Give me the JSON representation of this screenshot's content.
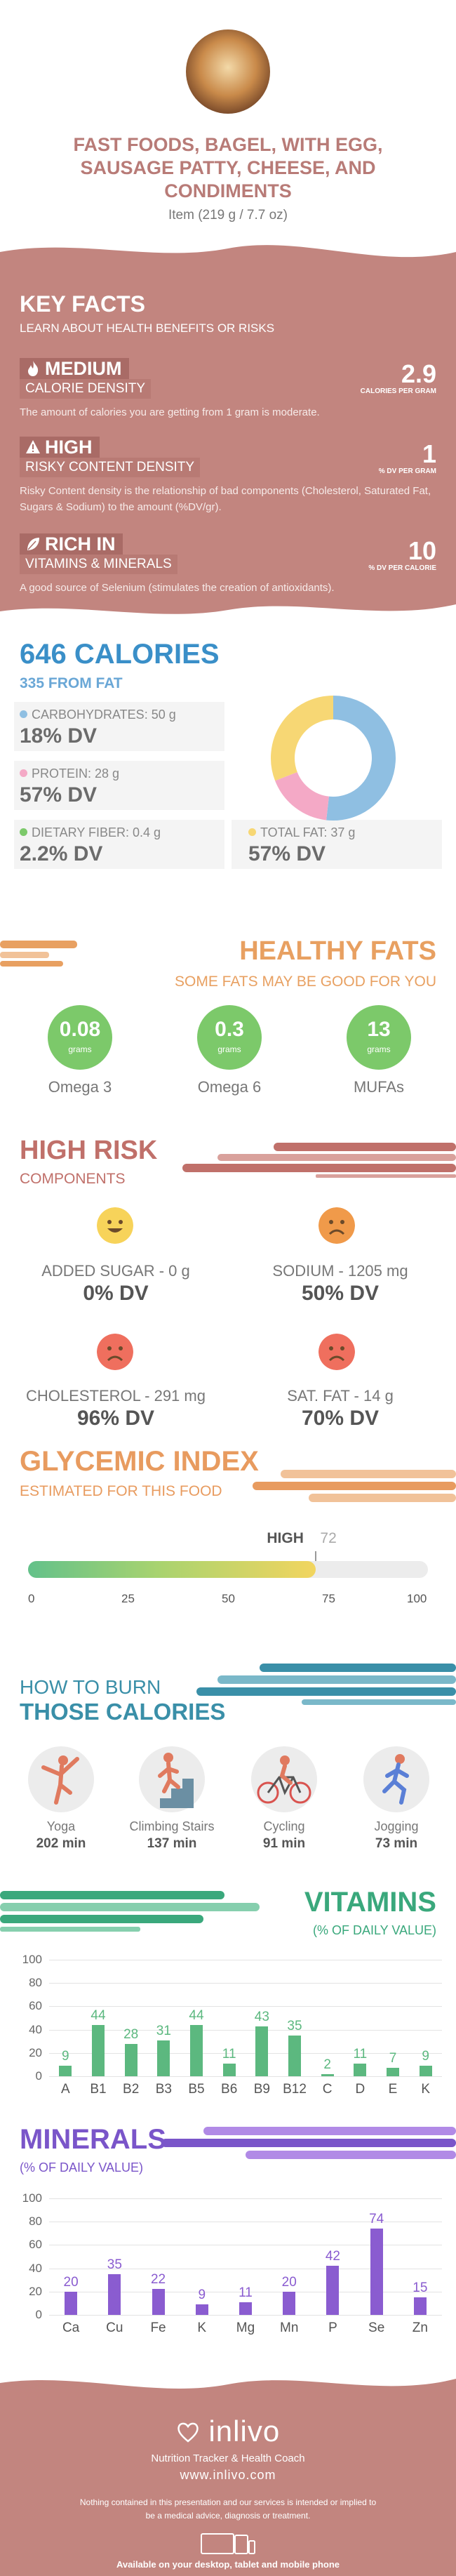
{
  "header": {
    "title": "FAST FOODS, BAGEL, WITH EGG, SAUSAGE PATTY, CHEESE, AND CONDIMENTS",
    "subtitle": "Item (219 g / 7.7 oz)"
  },
  "key_facts": {
    "title": "KEY FACTS",
    "subtitle": "LEARN ABOUT HEALTH BENEFITS OR RISKS",
    "items": [
      {
        "level": "MEDIUM",
        "label": "CALORIE DENSITY",
        "value": "2.9",
        "unit": "CALORIES PER GRAM",
        "description": "The amount of calories you are getting from 1 gram is moderate.",
        "icon": "flame-icon"
      },
      {
        "level": "HIGH",
        "label": "RISKY CONTENT DENSITY",
        "value": "1",
        "unit": "% DV PER GRAM",
        "description": "Risky Content density is the relationship of bad components (Cholesterol, Saturated Fat, Sugars & Sodium) to the amount (%DV/gr).",
        "icon": "warning-icon"
      },
      {
        "level": "RICH IN",
        "label": "VITAMINS & MINERALS",
        "value": "10",
        "unit": "% DV PER CALORIE",
        "description": "A good source of Selenium (stimulates the creation of antioxidants).",
        "icon": "leaf-icon"
      }
    ]
  },
  "calories": {
    "title": "646 CALORIES",
    "subtitle": "335 FROM FAT",
    "carbs": {
      "label": "CARBOHYDRATES: 50 g",
      "dv": "18% DV",
      "color": "#f7d774"
    },
    "protein": {
      "label": "PROTEIN: 28 g",
      "dv": "57% DV",
      "color": "#f4a9c6"
    },
    "fiber": {
      "label": "DIETARY FIBER: 0.4 g",
      "dv": "2.2% DV",
      "color": "#7cc96a"
    },
    "fat": {
      "label": "TOTAL FAT: 37 g",
      "dv": "57% DV",
      "color": "#f7d774"
    },
    "donut": [
      {
        "name": "fat",
        "value": 335,
        "color": "#8fbfe2"
      },
      {
        "name": "protein",
        "value": 112,
        "color": "#f4a9c6"
      },
      {
        "name": "carbs",
        "value": 200,
        "color": "#f7d774"
      }
    ]
  },
  "healthy_fats": {
    "title": "HEALTHY FATS",
    "subtitle": "SOME FATS MAY BE GOOD FOR YOU",
    "items": [
      {
        "value": "0.08",
        "unit": "grams",
        "label": "Omega 3"
      },
      {
        "value": "0.3",
        "unit": "grams",
        "label": "Omega 6"
      },
      {
        "value": "13",
        "unit": "grams",
        "label": "MUFAs"
      }
    ]
  },
  "high_risk": {
    "title": "HIGH RISK",
    "subtitle": "COMPONENTS",
    "items": [
      {
        "label": "ADDED SUGAR - 0 g",
        "dv": "0% DV",
        "mood": "happy",
        "color": "#f7d35a"
      },
      {
        "label": "SODIUM - 1205 mg",
        "dv": "50% DV",
        "mood": "sad",
        "color": "#f09a4a"
      },
      {
        "label": "CHOLESTEROL - 291 mg",
        "dv": "96% DV",
        "mood": "sad",
        "color": "#ef6f5e"
      },
      {
        "label": "SAT. FAT - 14 g",
        "dv": "70% DV",
        "mood": "sad",
        "color": "#ef6f5e"
      }
    ]
  },
  "glycemic": {
    "title": "GLYCEMIC INDEX",
    "subtitle": "ESTIMATED FOR THIS FOOD",
    "level": "HIGH",
    "value": 72,
    "ticks": [
      "0",
      "25",
      "50",
      "75",
      "100"
    ]
  },
  "burn": {
    "title_line1": "HOW TO BURN",
    "title_line2": "THOSE CALORIES",
    "activities": [
      {
        "label": "Yoga",
        "minutes": "202 min",
        "icon": "yoga-icon"
      },
      {
        "label": "Climbing Stairs",
        "minutes": "137 min",
        "icon": "stairs-icon"
      },
      {
        "label": "Cycling",
        "minutes": "91 min",
        "icon": "cycling-icon"
      },
      {
        "label": "Jogging",
        "minutes": "73 min",
        "icon": "jogging-icon"
      }
    ]
  },
  "vitamins": {
    "title": "VITAMINS",
    "subtitle": "(% OF DAILY VALUE)",
    "chart_data": {
      "type": "bar",
      "categories": [
        "A",
        "B1",
        "B2",
        "B3",
        "B5",
        "B6",
        "B9",
        "B12",
        "C",
        "D",
        "E",
        "K"
      ],
      "values": [
        9,
        44,
        28,
        31,
        44,
        11,
        43,
        35,
        2,
        11,
        7,
        9
      ],
      "ylim": [
        0,
        100
      ],
      "yticks": [
        "0",
        "20",
        "40",
        "60",
        "80",
        "100"
      ],
      "color": "#5cb87f"
    }
  },
  "minerals": {
    "title": "MINERALS",
    "subtitle": "(% OF DAILY VALUE)",
    "chart_data": {
      "type": "bar",
      "categories": [
        "Ca",
        "Cu",
        "Fe",
        "K",
        "Mg",
        "Mn",
        "P",
        "Se",
        "Zn"
      ],
      "values": [
        20,
        35,
        22,
        9,
        11,
        20,
        42,
        74,
        15
      ],
      "ylim": [
        0,
        100
      ],
      "yticks": [
        "0",
        "20",
        "40",
        "60",
        "80",
        "100"
      ],
      "color": "#8a5cd0"
    }
  },
  "footer": {
    "logo": "inlivo",
    "tagline": "Nutrition Tracker & Health Coach",
    "url": "www.inlivo.com",
    "disclaimer": "Nothing contained in this presentation and our services is intended or implied to be a medical advice, diagnosis or treatment.",
    "available": "Available on your desktop, tablet and mobile phone"
  }
}
